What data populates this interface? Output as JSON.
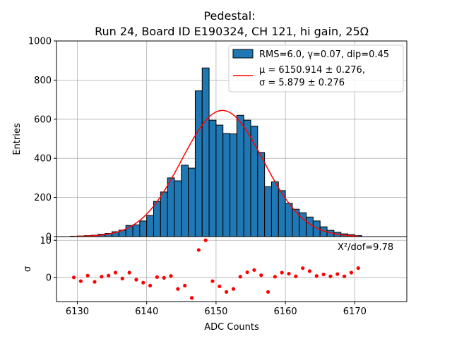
{
  "chart_data": {
    "type": "bar",
    "title": "Pedestal:",
    "subtitle": "Run 24, Board ID E190324, CH 121, hi gain, 25Ω",
    "xlabel": "ADC Counts",
    "ylabel": "Entries",
    "residual_ylabel": "σ",
    "xlim": [
      6127,
      6177.5
    ],
    "ylim": [
      0,
      1000
    ],
    "residual_ylim": [
      -6.5,
      11
    ],
    "x_ticks": [
      6130,
      6140,
      6150,
      6160,
      6170
    ],
    "x_tick_labels": [
      "6130",
      "6140",
      "6150",
      "6160",
      "6170"
    ],
    "y_ticks": [
      0,
      200,
      400,
      600,
      800,
      1000
    ],
    "y_tick_labels": [
      "0",
      "200",
      "400",
      "600",
      "800",
      "1000"
    ],
    "residual_ticks": [
      0,
      10
    ],
    "residual_tick_labels": [
      "0",
      "10"
    ],
    "grid": true,
    "legend": {
      "position": "top-right",
      "hist_label": "RMS=6.0, γ=0.07, dip=0.45",
      "fit_label_1": "μ = 6150.914 ± 0.276,",
      "fit_label_2": "σ = 5.879 ± 0.276"
    },
    "annotation": "X²/dof=9.78",
    "colors": {
      "bar": "#1f77b4",
      "fit": "#ff0000",
      "residual": "#ff0000",
      "grid": "#b0b0b0"
    },
    "bin_width": 1,
    "histogram": {
      "bin_left_edges": [
        6129,
        6130,
        6131,
        6132,
        6133,
        6134,
        6135,
        6136,
        6137,
        6138,
        6139,
        6140,
        6141,
        6142,
        6143,
        6144,
        6145,
        6146,
        6147,
        6148,
        6149,
        6150,
        6151,
        6152,
        6153,
        6154,
        6155,
        6156,
        6157,
        6158,
        6159,
        6160,
        6161,
        6162,
        6163,
        6164,
        6165,
        6166,
        6167,
        6168,
        6169,
        6170
      ],
      "counts": [
        2,
        3,
        5,
        7,
        12,
        16,
        25,
        33,
        57,
        60,
        80,
        108,
        180,
        228,
        300,
        285,
        365,
        350,
        745,
        862,
        595,
        570,
        527,
        525,
        620,
        595,
        565,
        430,
        255,
        280,
        235,
        170,
        140,
        122,
        100,
        80,
        50,
        32,
        22,
        14,
        10,
        5
      ]
    },
    "fit": {
      "type": "gaussian",
      "mu": 6150.914,
      "sigma": 5.879,
      "amplitude": 645
    },
    "residuals": {
      "x": [
        6129.5,
        6130.5,
        6131.5,
        6132.5,
        6133.5,
        6134.5,
        6135.5,
        6136.5,
        6137.5,
        6138.5,
        6139.5,
        6140.5,
        6141.5,
        6142.5,
        6143.5,
        6144.5,
        6145.5,
        6146.5,
        6147.5,
        6148.5,
        6149.5,
        6150.5,
        6151.5,
        6152.5,
        6153.5,
        6154.5,
        6155.5,
        6156.5,
        6157.5,
        6158.5,
        6159.5,
        6160.5,
        6161.5,
        6162.5,
        6163.5,
        6164.5,
        6165.5,
        6166.5,
        6167.5,
        6168.5,
        6169.5,
        6170.5
      ],
      "y": [
        0,
        -1,
        0.5,
        -1.2,
        0.2,
        0.5,
        1.3,
        -0.3,
        1.3,
        -0.6,
        -1.4,
        -2.2,
        0.1,
        -0.1,
        0.4,
        -3.1,
        -2.2,
        -5.5,
        7.4,
        10,
        -1,
        -2.4,
        -3.9,
        -3.1,
        0.2,
        1.4,
        2,
        0.6,
        -3.9,
        0.2,
        1.3,
        1,
        0.3,
        2.5,
        1.7,
        0.4,
        0.8,
        0.3,
        0.9,
        0.3,
        1.3,
        2.5
      ]
    }
  }
}
